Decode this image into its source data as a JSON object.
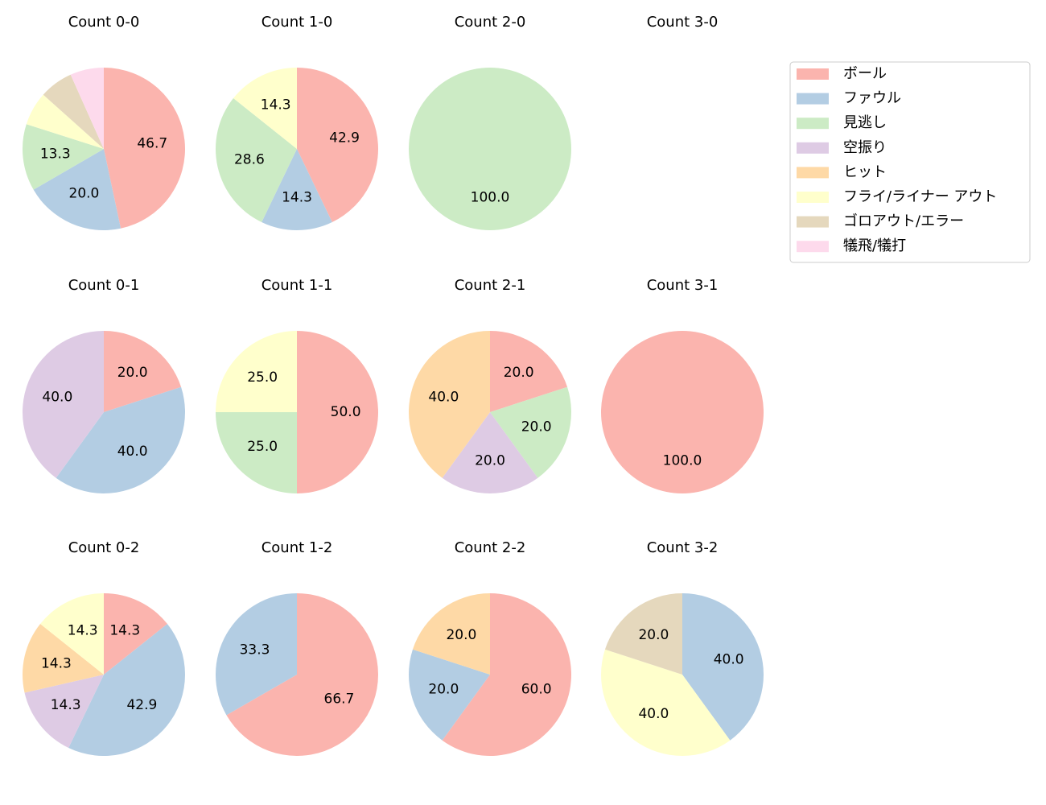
{
  "legend": {
    "labels": [
      "ボール",
      "ファウル",
      "見逃し",
      "空振り",
      "ヒット",
      "フライ/ライナー アウト",
      "ゴロアウト/エラー",
      "犠飛/犠打"
    ],
    "colors": [
      "#fbb4ae",
      "#b3cde3",
      "#ccebc5",
      "#decbe4",
      "#fed9a6",
      "#ffffcc",
      "#e5d8bd",
      "#fddaec"
    ]
  },
  "chart_data": [
    {
      "type": "pie",
      "title": "Count 0-0",
      "categories": [
        "ボール",
        "ファウル",
        "見逃し",
        "フライ/ライナー アウト",
        "ゴロアウト/エラー",
        "犠飛/犠打"
      ],
      "values": [
        46.7,
        20.0,
        13.3,
        6.7,
        6.7,
        6.7
      ],
      "value_labels": [
        "46.7",
        "20.0",
        "13.3",
        null,
        null,
        null
      ]
    },
    {
      "type": "pie",
      "title": "Count 1-0",
      "categories": [
        "ボール",
        "ファウル",
        "見逃し",
        "フライ/ライナー アウト"
      ],
      "values": [
        42.9,
        14.3,
        28.6,
        14.3
      ],
      "value_labels": [
        "42.9",
        "14.3",
        "28.6",
        "14.3"
      ]
    },
    {
      "type": "pie",
      "title": "Count 2-0",
      "categories": [
        "見逃し"
      ],
      "values": [
        100.0
      ],
      "value_labels": [
        "100.0"
      ]
    },
    {
      "type": "pie",
      "title": "Count 3-0",
      "categories": [],
      "values": [],
      "value_labels": []
    },
    {
      "type": "pie",
      "title": "Count 0-1",
      "categories": [
        "ボール",
        "ファウル",
        "空振り"
      ],
      "values": [
        20.0,
        40.0,
        40.0
      ],
      "value_labels": [
        "20.0",
        "40.0",
        "40.0"
      ]
    },
    {
      "type": "pie",
      "title": "Count 1-1",
      "categories": [
        "ボール",
        "見逃し",
        "フライ/ライナー アウト"
      ],
      "values": [
        50.0,
        25.0,
        25.0
      ],
      "value_labels": [
        "50.0",
        "25.0",
        "25.0"
      ]
    },
    {
      "type": "pie",
      "title": "Count 2-1",
      "categories": [
        "ボール",
        "見逃し",
        "空振り",
        "ヒット"
      ],
      "values": [
        20.0,
        20.0,
        20.0,
        40.0
      ],
      "value_labels": [
        "20.0",
        "20.0",
        "20.0",
        "40.0"
      ]
    },
    {
      "type": "pie",
      "title": "Count 3-1",
      "categories": [
        "ボール"
      ],
      "values": [
        100.0
      ],
      "value_labels": [
        "100.0"
      ]
    },
    {
      "type": "pie",
      "title": "Count 0-2",
      "categories": [
        "ボール",
        "ファウル",
        "空振り",
        "ヒット",
        "フライ/ライナー アウト"
      ],
      "values": [
        14.3,
        42.9,
        14.3,
        14.3,
        14.3
      ],
      "value_labels": [
        "14.3",
        "42.9",
        "14.3",
        "14.3",
        "14.3"
      ]
    },
    {
      "type": "pie",
      "title": "Count 1-2",
      "categories": [
        "ボール",
        "ファウル"
      ],
      "values": [
        66.7,
        33.3
      ],
      "value_labels": [
        "66.7",
        "33.3"
      ]
    },
    {
      "type": "pie",
      "title": "Count 2-2",
      "categories": [
        "ボール",
        "ファウル",
        "ヒット"
      ],
      "values": [
        60.0,
        20.0,
        20.0
      ],
      "value_labels": [
        "60.0",
        "20.0",
        "20.0"
      ]
    },
    {
      "type": "pie",
      "title": "Count 3-2",
      "categories": [
        "ファウル",
        "フライ/ライナー アウト",
        "ゴロアウト/エラー"
      ],
      "values": [
        40.0,
        40.0,
        20.0
      ],
      "value_labels": [
        "40.0",
        "40.0",
        "20.0"
      ]
    }
  ]
}
